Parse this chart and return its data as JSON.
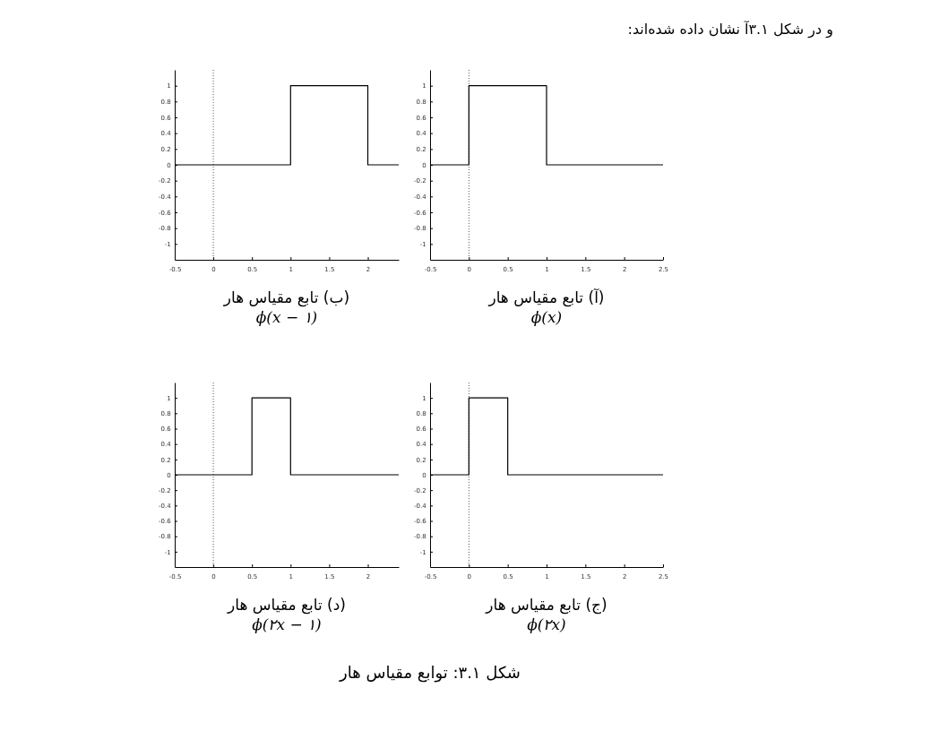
{
  "chart_data": [
    {
      "type": "line",
      "title": "(آ) تابع مقیاس هار",
      "subtitle": "ϕ(x)",
      "annotations": [
        "و در شکل ۳.۱آ نشان داده شده‌اند:",
        "شکل ۳.۱: توابع مقیاس هار"
      ],
      "series": [
        {
          "color": "#000000",
          "x": [
            -0.5,
            0,
            0,
            1,
            1,
            2.5
          ],
          "values": [
            0,
            0,
            1,
            1,
            0,
            0
          ]
        }
      ],
      "xlim": [
        -0.5,
        2.5
      ],
      "xticks": [
        -0.5,
        0,
        0.5,
        1,
        1.5,
        2,
        2.5
      ],
      "ylim": [
        -1.2,
        1.2
      ],
      "yticks": [
        -1,
        -0.8,
        -0.6,
        -0.4,
        -0.2,
        0,
        0.2,
        0.4,
        0.6,
        0.8,
        1
      ],
      "ref_lines": [
        {
          "axis": "x",
          "value": 0,
          "color": "#555555",
          "line_style": "dotted"
        }
      ]
    },
    {
      "type": "line",
      "title": "(ب) تابع مقیاس هار",
      "subtitle": "ϕ(x − ۱)",
      "series": [
        {
          "color": "#000000",
          "x": [
            -0.5,
            1,
            1,
            2,
            2,
            2.4
          ],
          "values": [
            0,
            0,
            1,
            1,
            0,
            0
          ]
        }
      ],
      "xlim": [
        -0.5,
        2.4
      ],
      "xticks": [
        -0.5,
        0,
        0.5,
        1,
        1.5,
        2
      ],
      "ylim": [
        -1.2,
        1.2
      ],
      "yticks": [
        -1,
        -0.8,
        -0.6,
        -0.4,
        -0.2,
        0,
        0.2,
        0.4,
        0.6,
        0.8,
        1
      ],
      "ref_lines": [
        {
          "axis": "x",
          "value": 0,
          "color": "#555555",
          "line_style": "dotted"
        }
      ]
    },
    {
      "type": "line",
      "title": "(ج) تابع مقیاس هار",
      "subtitle": "ϕ(۲x)",
      "series": [
        {
          "color": "#000000",
          "x": [
            -0.5,
            0,
            0,
            0.5,
            0.5,
            2.5
          ],
          "values": [
            0,
            0,
            1,
            1,
            0,
            0
          ]
        }
      ],
      "xlim": [
        -0.5,
        2.5
      ],
      "xticks": [
        -0.5,
        0,
        0.5,
        1,
        1.5,
        2,
        2.5
      ],
      "ylim": [
        -1.2,
        1.2
      ],
      "yticks": [
        -1,
        -0.8,
        -0.6,
        -0.4,
        -0.2,
        0,
        0.2,
        0.4,
        0.6,
        0.8,
        1
      ],
      "ref_lines": [
        {
          "axis": "x",
          "value": 0,
          "color": "#555555",
          "line_style": "dotted"
        }
      ]
    },
    {
      "type": "line",
      "title": "(د) تابع مقیاس هار",
      "subtitle": "ϕ(۲x − ۱)",
      "series": [
        {
          "color": "#000000",
          "x": [
            -0.5,
            0.5,
            0.5,
            1,
            1,
            2.4
          ],
          "values": [
            0,
            0,
            1,
            1,
            0,
            0
          ]
        }
      ],
      "xlim": [
        -0.5,
        2.4
      ],
      "xticks": [
        -0.5,
        0,
        0.5,
        1,
        1.5,
        2
      ],
      "ylim": [
        -1.2,
        1.2
      ],
      "yticks": [
        -1,
        -0.8,
        -0.6,
        -0.4,
        -0.2,
        0,
        0.2,
        0.4,
        0.6,
        0.8,
        1
      ],
      "ref_lines": [
        {
          "axis": "x",
          "value": 0,
          "color": "#555555",
          "line_style": "dotted"
        }
      ]
    }
  ]
}
